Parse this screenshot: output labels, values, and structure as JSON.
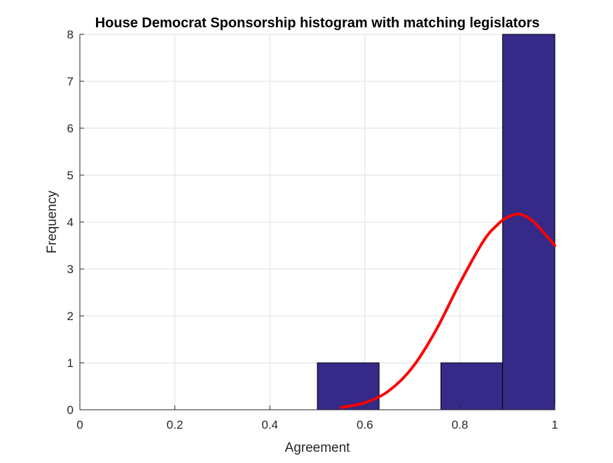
{
  "chart_data": {
    "type": "bar",
    "title": "House Democrat Sponsorship histogram with matching legislators",
    "xlabel": "Agreement",
    "ylabel": "Frequency",
    "xlim": [
      0,
      1
    ],
    "ylim": [
      0,
      8
    ],
    "xticks": [
      "0",
      "0.2",
      "0.4",
      "0.6",
      "0.8",
      "1"
    ],
    "yticks": [
      "0",
      "1",
      "2",
      "3",
      "4",
      "5",
      "6",
      "7",
      "8"
    ],
    "grid": true,
    "bins": [
      {
        "x0": 0.5,
        "x1": 0.63,
        "value": 1
      },
      {
        "x0": 0.76,
        "x1": 0.89,
        "value": 1
      },
      {
        "x0": 0.89,
        "x1": 1.02,
        "value": 8
      }
    ],
    "fit_curve": {
      "x": [
        0.55,
        0.6,
        0.65,
        0.7,
        0.75,
        0.8,
        0.85,
        0.88,
        0.9,
        0.925,
        0.95,
        0.97,
        1.0
      ],
      "y": [
        0.05,
        0.15,
        0.4,
        0.9,
        1.7,
        2.7,
        3.6,
        3.95,
        4.1,
        4.17,
        4.05,
        3.85,
        3.5
      ]
    },
    "bar_color": "#352a87",
    "curve_color": "#ff0000"
  }
}
